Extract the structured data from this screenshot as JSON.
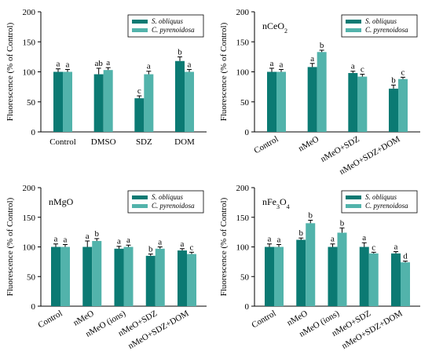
{
  "colors": {
    "s_obliquus": "#0b7a73",
    "c_pyrenoidosa": "#52b3ab",
    "axis": "#000000"
  },
  "chart_data": [
    {
      "type": "bar",
      "panel_label": "",
      "ylabel": "Fluorescence (% of Control)",
      "ylim": [
        0,
        200
      ],
      "yticks": [
        "0",
        "50",
        "100",
        "150",
        "200"
      ],
      "tick_rotation": 0,
      "categories": [
        "Control",
        "DMSO",
        "SDZ",
        "DOM"
      ],
      "legend_placement": "top-right",
      "series": [
        {
          "name": "S. obliquus",
          "values": [
            100,
            96,
            56,
            118
          ],
          "errors": [
            5,
            10,
            4,
            7
          ],
          "letters": [
            "a",
            "ab",
            "c",
            "b"
          ]
        },
        {
          "name": "C. pyrenoidosa",
          "values": [
            100,
            103,
            96,
            100
          ],
          "errors": [
            4,
            4,
            5,
            4
          ],
          "letters": [
            "a",
            "a",
            "a",
            "a"
          ]
        }
      ]
    },
    {
      "type": "bar",
      "panel_label": "nCeO",
      "panel_label_sub": "2",
      "ylabel": "Fluorescence (% of Control)",
      "ylim": [
        0,
        200
      ],
      "yticks": [
        "0",
        "50",
        "100",
        "150",
        "200"
      ],
      "tick_rotation": -30,
      "categories": [
        "Control",
        "nMeO",
        "nMeO+SDZ",
        "nMeO+SDZ+DOM"
      ],
      "legend_placement": "top-right",
      "series": [
        {
          "name": "S. obliquus",
          "values": [
            100,
            108,
            98,
            72
          ],
          "errors": [
            6,
            6,
            3,
            6
          ],
          "letters": [
            "a",
            "a",
            "a",
            "b"
          ]
        },
        {
          "name": "C. pyrenoidosa",
          "values": [
            100,
            133,
            92,
            88
          ],
          "errors": [
            4,
            3,
            4,
            3
          ],
          "letters": [
            "a",
            "b",
            "c",
            "c"
          ]
        }
      ]
    },
    {
      "type": "bar",
      "panel_label": "nMgO",
      "panel_label_sub": "",
      "ylabel": "Fluorescence (% of Control)",
      "ylim": [
        0,
        200
      ],
      "yticks": [
        "0",
        "50",
        "100",
        "150",
        "200"
      ],
      "tick_rotation": -30,
      "categories": [
        "Control",
        "nMeO",
        "nMeO (ions)",
        "nMeO+SDZ",
        "nMeO+SDZ+DOM"
      ],
      "legend_placement": "top-right",
      "series": [
        {
          "name": "S. obliquus",
          "values": [
            100,
            100,
            97,
            85,
            94
          ],
          "errors": [
            5,
            10,
            4,
            3,
            3
          ],
          "letters": [
            "a",
            "a",
            "a",
            "b",
            "a"
          ]
        },
        {
          "name": "C. pyrenoidosa",
          "values": [
            100,
            110,
            100,
            97,
            88
          ],
          "errors": [
            4,
            4,
            3,
            3,
            3
          ],
          "letters": [
            "a",
            "b",
            "a",
            "a",
            "c"
          ]
        }
      ]
    },
    {
      "type": "bar",
      "panel_label": "nFe",
      "panel_label_sub": "3",
      "panel_label_mid": "O",
      "panel_label_sub2": "4",
      "ylabel": "Fluorescence (% of Control)",
      "ylim": [
        0,
        200
      ],
      "yticks": [
        "0",
        "50",
        "100",
        "150",
        "200"
      ],
      "tick_rotation": -30,
      "categories": [
        "Control",
        "nMeO",
        "nMeO (ions)",
        "nMeO+SDZ",
        "nMeO+SDZ+DOM"
      ],
      "legend_placement": "top-right",
      "series": [
        {
          "name": "S. obliquus",
          "values": [
            100,
            112,
            100,
            100,
            89
          ],
          "errors": [
            5,
            3,
            5,
            7,
            3
          ],
          "letters": [
            "a",
            "b",
            "a",
            "a",
            "a"
          ]
        },
        {
          "name": "C. pyrenoidosa",
          "values": [
            100,
            140,
            124,
            89,
            74
          ],
          "errors": [
            4,
            5,
            8,
            2,
            2
          ],
          "letters": [
            "a",
            "b",
            "b",
            "c",
            "d"
          ]
        }
      ]
    }
  ]
}
